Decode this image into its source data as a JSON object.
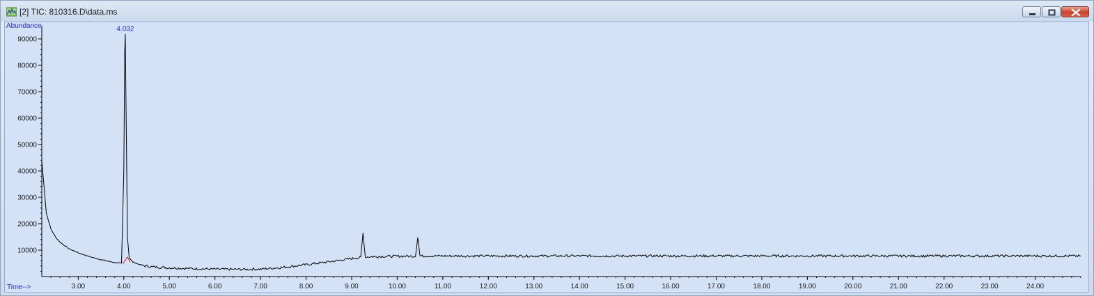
{
  "window": {
    "title": "[2] TIC: 810316.D\\data.ms",
    "icon": "chromatogram-app-icon"
  },
  "chart_data": {
    "type": "line",
    "ylabel": "Abundance",
    "xlabel": "Time-->",
    "xlim": [
      2.2,
      25.0
    ],
    "ylim": [
      0,
      95000
    ],
    "x_ticks": [
      "3.00",
      "4.00",
      "5.00",
      "6.00",
      "7.00",
      "8.00",
      "9.00",
      "10.00",
      "11.00",
      "12.00",
      "13.00",
      "14.00",
      "15.00",
      "16.00",
      "17.00",
      "18.00",
      "19.00",
      "20.00",
      "21.00",
      "22.00",
      "23.00",
      "24.00"
    ],
    "y_ticks": [
      "10000",
      "20000",
      "30000",
      "40000",
      "50000",
      "60000",
      "70000",
      "80000",
      "90000"
    ],
    "peak_labels": [
      {
        "x": 4.032,
        "y": 92000,
        "text": "4.032"
      }
    ],
    "series": [
      {
        "x": [
          2.2,
          2.3,
          2.4,
          2.5,
          2.6,
          2.8,
          3.0,
          3.2,
          3.4,
          3.6,
          3.8,
          3.95,
          4.0,
          4.02,
          4.032,
          4.05,
          4.08,
          4.12,
          4.2,
          4.4,
          4.6,
          5.0,
          5.5,
          6.0,
          6.5,
          7.0,
          7.5,
          8.0,
          8.5,
          9.0,
          9.2,
          9.25,
          9.3,
          9.4,
          9.6,
          10.0,
          10.4,
          10.45,
          10.5,
          10.6,
          11.0,
          12.0,
          13.0,
          14.0,
          15.0,
          16.0,
          17.0,
          18.0,
          19.0,
          20.0,
          21.0,
          22.0,
          23.0,
          24.0,
          25.0
        ],
        "y": [
          44000,
          24000,
          18000,
          15000,
          13000,
          10500,
          9000,
          7800,
          6800,
          6000,
          5300,
          5000,
          40000,
          85000,
          92000,
          62000,
          15000,
          7000,
          5500,
          4200,
          3700,
          3300,
          3000,
          2800,
          2700,
          2800,
          3500,
          4500,
          5600,
          6800,
          7200,
          16500,
          7400,
          7500,
          7600,
          7700,
          7700,
          15000,
          7800,
          7800,
          7800,
          7800,
          7800,
          7800,
          7800,
          7800,
          7800,
          7800,
          7800,
          7800,
          7800,
          7800,
          7800,
          7800,
          7800
        ]
      }
    ],
    "line_color": "#000000",
    "baseline_marker_color": "#e02020",
    "grid": false
  }
}
